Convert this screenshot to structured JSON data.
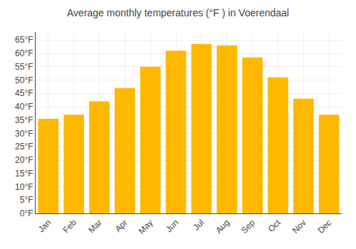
{
  "chart_data": {
    "type": "bar",
    "title": "Average monthly temperatures (°F ) in Voerendaal",
    "categories": [
      "Jan",
      "Feb",
      "Mar",
      "Apr",
      "May",
      "Jun",
      "Jul",
      "Aug",
      "Sep",
      "Oct",
      "Nov",
      "Dec"
    ],
    "values": [
      35.5,
      37.0,
      42.0,
      47.0,
      55.0,
      61.0,
      63.5,
      63.0,
      58.5,
      51.0,
      43.0,
      37.0
    ],
    "color": "#FFB800",
    "ylim": [
      0,
      68
    ],
    "yticks": [
      {
        "value": 0,
        "label": "0°F"
      },
      {
        "value": 5,
        "label": "5°F"
      },
      {
        "value": 10,
        "label": "10°F"
      },
      {
        "value": 15,
        "label": "15°F"
      },
      {
        "value": 20,
        "label": "20°F"
      },
      {
        "value": 25,
        "label": "25°F"
      },
      {
        "value": 30,
        "label": "30°F"
      },
      {
        "value": 35,
        "label": "35°F"
      },
      {
        "value": 40,
        "label": "40°F"
      },
      {
        "value": 45,
        "label": "45°F"
      },
      {
        "value": 50,
        "label": "50°F"
      },
      {
        "value": 55,
        "label": "55°F"
      },
      {
        "value": 60,
        "label": "60°F"
      },
      {
        "value": 65,
        "label": "65°F"
      }
    ],
    "grid": true
  }
}
